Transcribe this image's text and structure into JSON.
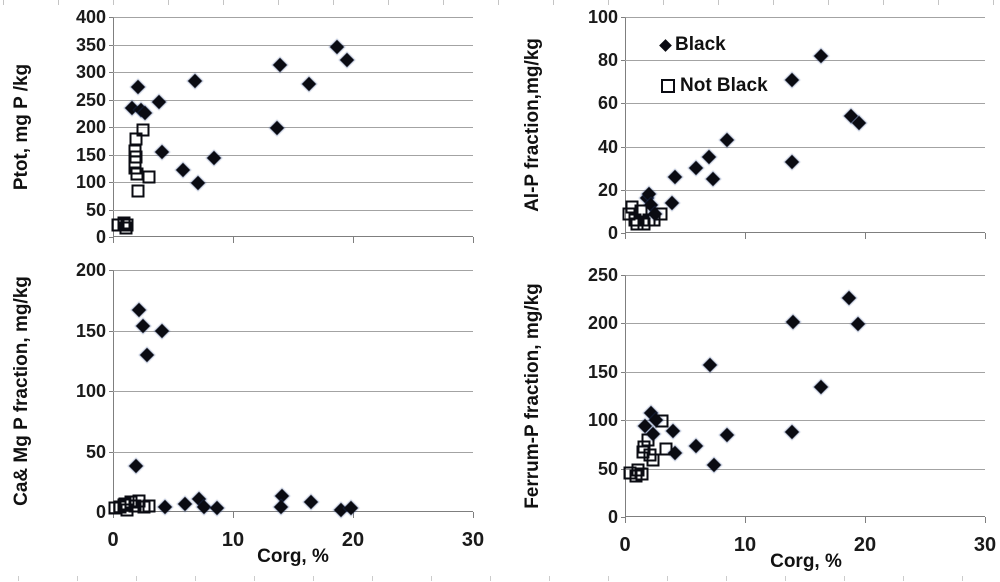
{
  "page": {
    "background": "#ffffff"
  },
  "colors": {
    "marker": "#0a0b12",
    "grid": "#a3a3a3",
    "axis": "#7f7f7f",
    "text": "#1a1a1a",
    "ruler_tick_top": "#c4c4c4",
    "ruler_tick_bottom": "#cccccc"
  },
  "legend": {
    "items": [
      {
        "label": "Black",
        "marker": "diamond"
      },
      {
        "label": "Not Black",
        "marker": "square"
      }
    ]
  },
  "chart_data": [
    {
      "id": "ptot",
      "type": "scatter",
      "title": "",
      "ylabel": "Ptot, mg P /kg",
      "xlabel": "",
      "xlim": [
        0,
        30
      ],
      "ylim": [
        0,
        400
      ],
      "yticks": [
        0,
        50,
        100,
        150,
        200,
        250,
        300,
        350,
        400
      ],
      "xticks": [
        0,
        10,
        20,
        30
      ],
      "x_tick_labels_visible": false,
      "legend_visible": false,
      "grid": true,
      "series": [
        {
          "name": "Black",
          "marker": "diamond",
          "points": [
            [
              1.6,
              234
            ],
            [
              2.1,
              272
            ],
            [
              2.3,
              231
            ],
            [
              2.7,
              226
            ],
            [
              3.8,
              246
            ],
            [
              4.1,
              155
            ],
            [
              5.8,
              122
            ],
            [
              6.8,
              284
            ],
            [
              7.1,
              99
            ],
            [
              8.4,
              144
            ],
            [
              13.7,
              198
            ],
            [
              13.9,
              313
            ],
            [
              16.3,
              278
            ],
            [
              18.7,
              346
            ],
            [
              19.5,
              321
            ]
          ]
        },
        {
          "name": "Not Black",
          "marker": "square",
          "points": [
            [
              2.5,
              195
            ],
            [
              1.9,
              178
            ],
            [
              1.8,
              156
            ],
            [
              1.9,
              146
            ],
            [
              1.8,
              136
            ],
            [
              1.8,
              125
            ],
            [
              2.0,
              115
            ],
            [
              3.0,
              109
            ],
            [
              2.1,
              83
            ],
            [
              0.4,
              21
            ],
            [
              0.9,
              26
            ],
            [
              1.2,
              22
            ],
            [
              1.1,
              16
            ]
          ]
        }
      ]
    },
    {
      "id": "alp",
      "type": "scatter",
      "title": "",
      "ylabel": "Al-P fraction,mg/kg",
      "xlabel": "",
      "xlim": [
        0,
        30
      ],
      "ylim": [
        0,
        100
      ],
      "yticks": [
        0,
        20,
        40,
        60,
        80,
        100
      ],
      "xticks": [
        0,
        10,
        20,
        30
      ],
      "x_tick_labels_visible": false,
      "legend_visible": true,
      "grid": true,
      "series": [
        {
          "name": "Black",
          "marker": "diamond",
          "points": [
            [
              1.8,
              16
            ],
            [
              2.0,
              18
            ],
            [
              2.2,
              13
            ],
            [
              2.5,
              9
            ],
            [
              3.9,
              14
            ],
            [
              4.2,
              26
            ],
            [
              5.9,
              30
            ],
            [
              7.0,
              35
            ],
            [
              7.3,
              25
            ],
            [
              8.5,
              43
            ],
            [
              13.9,
              71
            ],
            [
              13.9,
              33
            ],
            [
              16.3,
              82
            ],
            [
              18.8,
              54
            ],
            [
              19.5,
              51
            ]
          ]
        },
        {
          "name": "Not Black",
          "marker": "square",
          "points": [
            [
              0.3,
              9
            ],
            [
              0.6,
              12
            ],
            [
              0.8,
              6
            ],
            [
              1.0,
              4
            ],
            [
              1.3,
              10
            ],
            [
              1.6,
              4
            ],
            [
              2.0,
              6
            ],
            [
              2.4,
              6
            ],
            [
              3.0,
              9
            ]
          ]
        }
      ]
    },
    {
      "id": "camg",
      "type": "scatter",
      "title": "",
      "ylabel": "Ca& Mg P fraction, mg/kg",
      "xlabel": "Corg, %",
      "xlim": [
        0,
        30
      ],
      "ylim": [
        0,
        200
      ],
      "yticks": [
        0,
        50,
        100,
        150,
        200
      ],
      "xticks": [
        0,
        10,
        20,
        30
      ],
      "x_tick_labels_visible": true,
      "legend_visible": false,
      "grid": true,
      "series": [
        {
          "name": "Black",
          "marker": "diamond",
          "points": [
            [
              2.2,
              167
            ],
            [
              2.5,
              154
            ],
            [
              4.1,
              150
            ],
            [
              2.8,
              130
            ],
            [
              1.9,
              38
            ],
            [
              4.3,
              4
            ],
            [
              6.0,
              7
            ],
            [
              7.2,
              11
            ],
            [
              7.6,
              4
            ],
            [
              8.7,
              3
            ],
            [
              14.1,
              13
            ],
            [
              14.0,
              4
            ],
            [
              16.5,
              8
            ],
            [
              19.0,
              2
            ],
            [
              19.8,
              3
            ]
          ]
        },
        {
          "name": "Not Black",
          "marker": "square",
          "points": [
            [
              0.2,
              3
            ],
            [
              0.6,
              4
            ],
            [
              0.9,
              6
            ],
            [
              1.2,
              2
            ],
            [
              1.5,
              8
            ],
            [
              1.8,
              5
            ],
            [
              2.2,
              9
            ],
            [
              2.6,
              4
            ],
            [
              3.0,
              5
            ],
            [
              1.0,
              7
            ]
          ]
        }
      ]
    },
    {
      "id": "fep",
      "type": "scatter",
      "title": "",
      "ylabel": "Ferrum-P  fraction, mg/kg",
      "xlabel": "Corg, %",
      "xlim": [
        0,
        30
      ],
      "ylim": [
        0,
        250
      ],
      "yticks": [
        0,
        50,
        100,
        150,
        200,
        250
      ],
      "xticks": [
        0,
        10,
        20,
        30
      ],
      "x_tick_labels_visible": true,
      "legend_visible": false,
      "grid": true,
      "series": [
        {
          "name": "Black",
          "marker": "diamond",
          "points": [
            [
              1.7,
              94
            ],
            [
              2.2,
              107
            ],
            [
              2.6,
              100
            ],
            [
              2.3,
              86
            ],
            [
              4.0,
              89
            ],
            [
              4.2,
              66
            ],
            [
              5.9,
              73
            ],
            [
              7.4,
              54
            ],
            [
              7.1,
              157
            ],
            [
              8.5,
              85
            ],
            [
              13.9,
              88
            ],
            [
              14.0,
              201
            ],
            [
              16.3,
              134
            ],
            [
              18.7,
              226
            ],
            [
              19.4,
              199
            ]
          ]
        },
        {
          "name": "Not Black",
          "marker": "square",
          "points": [
            [
              0.4,
              45
            ],
            [
              0.9,
              42
            ],
            [
              1.4,
              44
            ],
            [
              1.5,
              67
            ],
            [
              1.6,
              72
            ],
            [
              1.9,
              80
            ],
            [
              2.1,
              64
            ],
            [
              2.3,
              59
            ],
            [
              3.1,
              99
            ],
            [
              1.1,
              49
            ],
            [
              3.4,
              70
            ]
          ]
        }
      ]
    }
  ]
}
